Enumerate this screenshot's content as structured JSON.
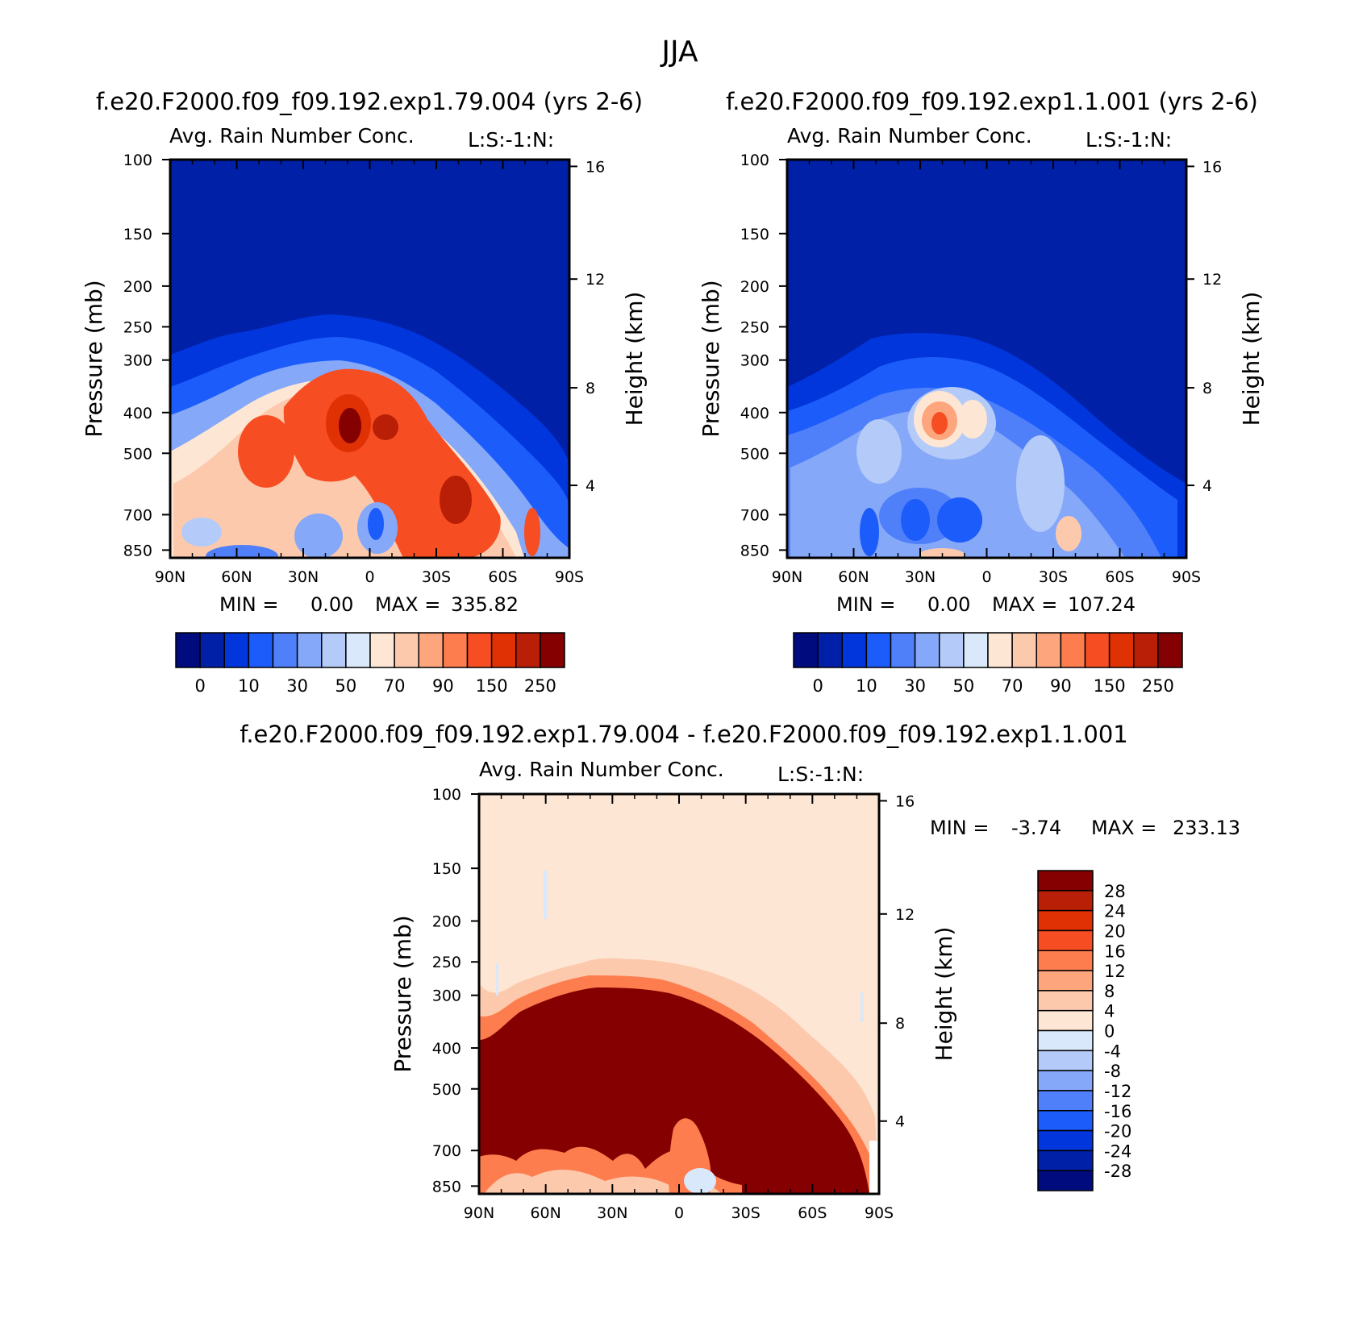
{
  "title": "JJA",
  "chart_data": [
    {
      "type": "heatmap",
      "panel": "top-left",
      "case_title": "f.e20.F2000.f09_f09.192.exp1.79.004 (yrs 2-6)",
      "title": "Avg. Rain Number Conc.",
      "subtitle": "L:S:-1:N:",
      "xlabel": "",
      "ylabel": "Pressure (mb)",
      "ylabel_right": "Height (km)",
      "xticks": [
        "90N",
        "60N",
        "30N",
        "0",
        "30S",
        "60S",
        "90S"
      ],
      "yticks": [
        100,
        150,
        200,
        250,
        300,
        400,
        500,
        700,
        850
      ],
      "yticks_right": [
        16,
        12,
        8,
        4
      ],
      "min_label": "MIN =",
      "min_value": "0.00",
      "max_label": "MAX =",
      "max_value": "335.82",
      "colorbar_labels": [
        "0",
        "10",
        "30",
        "50",
        "70",
        "90",
        "150",
        "250"
      ],
      "colors": [
        "#000c7e",
        "#0020a8",
        "#0036dc",
        "#1c5cfb",
        "#4f80f9",
        "#85a8f9",
        "#b4caf8",
        "#d9e8fb",
        "#fee6d4",
        "#fdc9ad",
        "#fda57d",
        "#fd7d4e",
        "#f74d22",
        "#e03105",
        "#b81f06",
        "#850000"
      ]
    },
    {
      "type": "heatmap",
      "panel": "top-right",
      "case_title": "f.e20.F2000.f09_f09.192.exp1.1.001 (yrs 2-6)",
      "title": "Avg. Rain Number Conc.",
      "subtitle": "L:S:-1:N:",
      "ylabel": "Pressure (mb)",
      "ylabel_right": "Height (km)",
      "xticks": [
        "90N",
        "60N",
        "30N",
        "0",
        "30S",
        "60S",
        "90S"
      ],
      "yticks": [
        100,
        150,
        200,
        250,
        300,
        400,
        500,
        700,
        850
      ],
      "yticks_right": [
        16,
        12,
        8,
        4
      ],
      "min_label": "MIN =",
      "min_value": "0.00",
      "max_label": "MAX =",
      "max_value": "107.24",
      "colorbar_labels": [
        "0",
        "10",
        "30",
        "50",
        "70",
        "90",
        "150",
        "250"
      ]
    },
    {
      "type": "heatmap",
      "panel": "bottom-difference",
      "case_title": "f.e20.F2000.f09_f09.192.exp1.79.004 - f.e20.F2000.f09_f09.192.exp1.1.001",
      "title": "Avg. Rain Number Conc.",
      "subtitle": "L:S:-1:N:",
      "ylabel": "Pressure (mb)",
      "ylabel_right": "Height (km)",
      "xticks": [
        "90N",
        "60N",
        "30N",
        "0",
        "30S",
        "60S",
        "90S"
      ],
      "yticks": [
        100,
        150,
        200,
        250,
        300,
        400,
        500,
        700,
        850
      ],
      "yticks_right": [
        16,
        12,
        8,
        4
      ],
      "min_label": "MIN =",
      "min_value": "-3.74",
      "max_label": "MAX =",
      "max_value": "233.13",
      "colorbar_labels": [
        "28",
        "24",
        "20",
        "16",
        "12",
        "8",
        "4",
        "0",
        "-4",
        "-8",
        "-12",
        "-16",
        "-20",
        "-24",
        "-28"
      ],
      "colors": [
        "#850000",
        "#b81f06",
        "#e03105",
        "#f74d22",
        "#fd7d4e",
        "#fda57d",
        "#fdc9ad",
        "#fee6d4",
        "#d9e8fb",
        "#b4caf8",
        "#85a8f9",
        "#4f80f9",
        "#1c5cfb",
        "#0036dc",
        "#0020a8",
        "#000c7e"
      ]
    }
  ]
}
